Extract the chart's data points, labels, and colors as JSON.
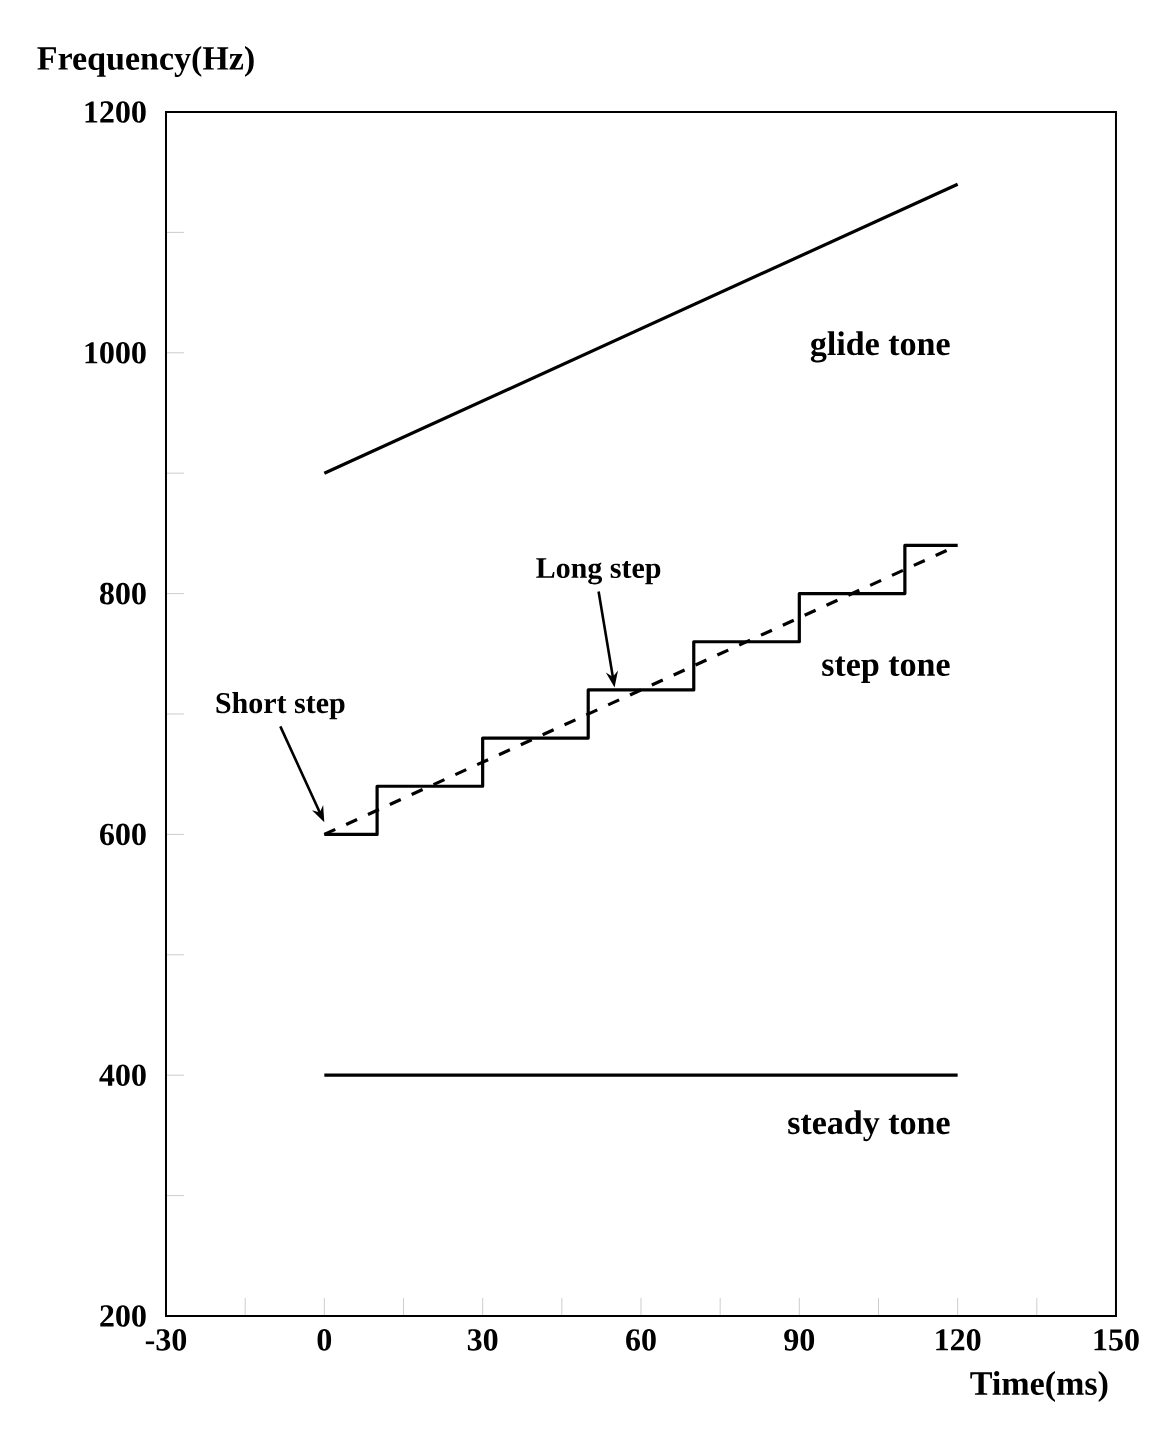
{
  "chart_data": {
    "type": "line",
    "xlabel": "Time(ms)",
    "ylabel": "Frequency(Hz)",
    "xlim": [
      -30,
      150
    ],
    "ylim": [
      200,
      1200
    ],
    "xticks": [
      -30,
      {
        "value": -15,
        "label": null
      },
      0,
      {
        "value": 15,
        "label": null
      },
      30,
      {
        "value": 45,
        "label": null
      },
      60,
      {
        "value": 75,
        "label": null
      },
      90,
      {
        "value": 105,
        "label": null
      },
      120,
      {
        "value": 135,
        "label": null
      },
      150
    ],
    "yticks": [
      200,
      {
        "value": 300,
        "label": null
      },
      400,
      {
        "value": 500,
        "label": null
      },
      600,
      {
        "value": 700,
        "label": null
      },
      800,
      {
        "value": 900,
        "label": null
      },
      1000,
      {
        "value": 1100,
        "label": null
      },
      1200
    ],
    "grid": false,
    "legend": false,
    "marker": "none",
    "series": [
      {
        "name": "glide tone",
        "color": "#000000",
        "x": [
          0,
          120
        ],
        "values": [
          900,
          1140
        ]
      },
      {
        "name": "step tone",
        "type": "step",
        "color": "#000000",
        "x": [
          0,
          10,
          30,
          50,
          70,
          90,
          110,
          120
        ],
        "values": [
          600,
          640,
          680,
          720,
          760,
          800,
          840,
          840
        ]
      },
      {
        "color": "#000000",
        "line_style": "dashed",
        "x": [
          0,
          120
        ],
        "values": [
          600,
          840
        ]
      },
      {
        "name": "steady tone",
        "color": "#000000",
        "x": [
          0,
          120
        ],
        "values": [
          400,
          400
        ]
      }
    ],
    "annotations": [
      {
        "text": "Short step",
        "x": 0,
        "y": 610
      },
      {
        "text": "Long step",
        "x": 55,
        "y": 722
      }
    ]
  }
}
